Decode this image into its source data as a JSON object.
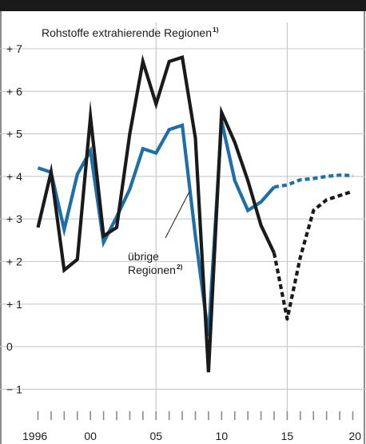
{
  "chart_data": {
    "type": "line",
    "title": "Rohstoffe extrahierende Regionen",
    "title_sup": "1)",
    "annotation": "übrige Regionen",
    "annotation_line1": "übrige",
    "annotation_line2": "Regionen",
    "annotation_sup": "2)",
    "xlim": [
      1996,
      2020
    ],
    "ylim": [
      -1.8,
      7.7
    ],
    "x_tick_labels": [
      {
        "x": 1996,
        "label": "1996"
      },
      {
        "x": 2000,
        "label": "00"
      },
      {
        "x": 2005,
        "label": "05"
      },
      {
        "x": 2010,
        "label": "10"
      },
      {
        "x": 2015,
        "label": "15"
      },
      {
        "x": 2020,
        "label": "20"
      }
    ],
    "y_ticks": [
      {
        "y": 7,
        "label": "+ 7"
      },
      {
        "y": 6,
        "label": "+ 6"
      },
      {
        "y": 5,
        "label": "+ 5"
      },
      {
        "y": 4,
        "label": "+ 4"
      },
      {
        "y": 3,
        "label": "+ 3"
      },
      {
        "y": 2,
        "label": "+ 2"
      },
      {
        "y": 1,
        "label": "+ 1"
      },
      {
        "y": 0,
        "label": "0"
      },
      {
        "y": -1,
        "label": "− 1"
      }
    ],
    "vertical_lines": [
      2005,
      2015
    ],
    "series": [
      {
        "key": "rohstoff",
        "color": "#1a1a1a",
        "actual": {
          "x": [
            1996,
            1997,
            1998,
            1999,
            2000,
            2001,
            2002,
            2003,
            2004,
            2005,
            2006,
            2007,
            2008,
            2009,
            2010,
            2011,
            2012,
            2013,
            2014
          ],
          "y": [
            2.8,
            4.1,
            1.8,
            2.05,
            5.4,
            2.6,
            2.8,
            5.0,
            6.7,
            5.7,
            6.7,
            6.8,
            4.9,
            -0.6,
            5.5,
            4.8,
            3.9,
            2.85,
            2.2
          ]
        },
        "forecast": {
          "x": [
            2014,
            2015,
            2016,
            2017,
            2018,
            2019,
            2020
          ],
          "y": [
            2.2,
            0.65,
            2.1,
            3.2,
            3.45,
            3.55,
            3.65
          ]
        }
      },
      {
        "key": "uebrige",
        "color": "#1e6fa8",
        "actual": {
          "x": [
            1996,
            1997,
            1998,
            1999,
            2000,
            2001,
            2002,
            2003,
            2004,
            2005,
            2006,
            2007,
            2008,
            2009,
            2010,
            2011,
            2012,
            2013,
            2014
          ],
          "y": [
            4.2,
            4.1,
            2.75,
            4.05,
            4.6,
            2.45,
            3.05,
            3.7,
            4.65,
            4.55,
            5.1,
            5.2,
            2.6,
            0.25,
            5.3,
            3.9,
            3.2,
            3.4,
            3.75
          ]
        },
        "forecast": {
          "x": [
            2014,
            2015,
            2016,
            2017,
            2018,
            2019,
            2020
          ],
          "y": [
            3.75,
            3.8,
            3.92,
            3.95,
            4.0,
            4.03,
            4.02
          ]
        }
      }
    ]
  }
}
